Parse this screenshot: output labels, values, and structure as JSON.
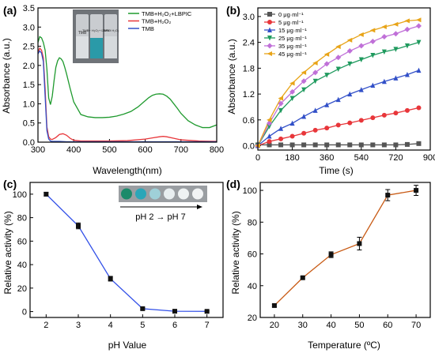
{
  "figure": {
    "panels": [
      {
        "label": "(a)",
        "xlabel": "Wavelength(nm)",
        "ylabel": "Absorbance (a.u.)"
      },
      {
        "label": "(b)",
        "xlabel": "Time (s)",
        "ylabel": "Absorbance (a.u.)"
      },
      {
        "label": "(c)",
        "xlabel": "pH Value",
        "ylabel": "Relative activity (%)",
        "annotation": "pH 2 → pH 7"
      },
      {
        "label": "(d)",
        "xlabel": "Temperature (ºC)",
        "ylabel": "Relative activity (%)"
      }
    ],
    "inset_a": {
      "vial_labels": [
        "TMB",
        "TMB+ H₂O₂+ LBPIC",
        "TMB+ H₂O₂"
      ]
    }
  },
  "chart_data": [
    {
      "panel": "a",
      "type": "line",
      "title": "",
      "xlabel": "Wavelength(nm)",
      "ylabel": "Absorbance (a.u.)",
      "xlim": [
        300,
        800
      ],
      "ylim": [
        0,
        3.5
      ],
      "xticks": [
        300,
        400,
        500,
        600,
        700,
        800
      ],
      "yticks": [
        0.0,
        0.5,
        1.0,
        1.5,
        2.0,
        2.5,
        3.0,
        3.5
      ],
      "x_tick_labels": [
        "300",
        "400",
        "500",
        "600",
        "700",
        "800"
      ],
      "y_tick_labels": [
        "0.0",
        "0.5",
        "1.0",
        "1.5",
        "2.0",
        "2.5",
        "3.0",
        "3.5"
      ],
      "legend_position": "top-right",
      "series": [
        {
          "name": "TMB+H₂O₂+LBPIC",
          "color": "#1f9a2e",
          "x": [
            300,
            305,
            310,
            315,
            320,
            325,
            330,
            335,
            340,
            345,
            350,
            355,
            360,
            365,
            370,
            375,
            380,
            390,
            400,
            420,
            440,
            460,
            480,
            500,
            520,
            540,
            560,
            580,
            600,
            610,
            620,
            630,
            640,
            650,
            660,
            670,
            680,
            690,
            700,
            720,
            740,
            760,
            780,
            800
          ],
          "y": [
            2.6,
            2.75,
            2.72,
            2.6,
            2.4,
            1.9,
            1.15,
            0.98,
            1.2,
            1.6,
            1.95,
            2.12,
            2.2,
            2.17,
            2.1,
            1.95,
            1.78,
            1.4,
            1.05,
            0.72,
            0.66,
            0.64,
            0.64,
            0.65,
            0.68,
            0.73,
            0.8,
            0.92,
            1.08,
            1.16,
            1.22,
            1.25,
            1.26,
            1.25,
            1.2,
            1.12,
            1.0,
            0.88,
            0.75,
            0.56,
            0.45,
            0.38,
            0.38,
            0.45
          ]
        },
        {
          "name": "TMB+H₂O₂",
          "color": "#e8363a",
          "x": [
            300,
            305,
            310,
            315,
            320,
            325,
            330,
            335,
            340,
            350,
            360,
            370,
            380,
            390,
            400,
            420,
            440,
            460,
            500,
            550,
            600,
            620,
            640,
            650,
            660,
            680,
            700,
            750,
            800
          ],
          "y": [
            2.35,
            2.45,
            2.4,
            2.2,
            1.4,
            0.4,
            0.14,
            0.08,
            0.07,
            0.12,
            0.2,
            0.22,
            0.18,
            0.1,
            0.05,
            0.03,
            0.03,
            0.03,
            0.03,
            0.04,
            0.08,
            0.11,
            0.14,
            0.15,
            0.14,
            0.1,
            0.06,
            0.03,
            0.02
          ]
        },
        {
          "name": "TMB",
          "color": "#3250c8",
          "x": [
            300,
            305,
            310,
            315,
            320,
            325,
            330,
            335,
            340,
            350,
            360,
            380,
            400,
            450,
            500,
            600,
            700,
            800
          ],
          "y": [
            2.3,
            2.38,
            2.32,
            2.1,
            1.2,
            0.3,
            0.08,
            0.03,
            0.02,
            0.02,
            0.02,
            0.01,
            0.01,
            0.01,
            0.01,
            0.01,
            0.01,
            0.01
          ]
        }
      ]
    },
    {
      "panel": "b",
      "type": "line",
      "title": "",
      "xlabel": "Time (s)",
      "ylabel": "Absorbance (a.u.)",
      "xlim": [
        0,
        900
      ],
      "ylim": [
        -0.1,
        3.2
      ],
      "xticks": [
        0,
        180,
        360,
        540,
        720,
        900
      ],
      "yticks": [
        0.0,
        0.6,
        1.2,
        1.8,
        2.4,
        3.0
      ],
      "x_tick_labels": [
        "0",
        "180",
        "360",
        "540",
        "720",
        "900"
      ],
      "y_tick_labels": [
        "0.0",
        "0.6",
        "1.2",
        "1.8",
        "2.4",
        "3.0"
      ],
      "legend_position": "top-left",
      "x": [
        0,
        60,
        120,
        180,
        240,
        300,
        360,
        420,
        480,
        540,
        600,
        660,
        720,
        780,
        840
      ],
      "series": [
        {
          "name": "0  μg·ml⁻¹",
          "color": "#555555",
          "marker": "square",
          "values": [
            0.02,
            0.02,
            0.02,
            0.02,
            0.02,
            0.02,
            0.02,
            0.02,
            0.02,
            0.02,
            0.02,
            0.02,
            0.02,
            0.03,
            0.05
          ]
        },
        {
          "name": "5  μg·ml⁻¹",
          "color": "#e8363a",
          "marker": "circle",
          "values": [
            0.0,
            0.1,
            0.16,
            0.22,
            0.29,
            0.36,
            0.41,
            0.48,
            0.53,
            0.59,
            0.65,
            0.71,
            0.76,
            0.82,
            0.88
          ]
        },
        {
          "name": "15  μg·ml⁻¹",
          "color": "#3250c8",
          "marker": "triangle-up",
          "values": [
            0.0,
            0.22,
            0.4,
            0.52,
            0.68,
            0.82,
            0.95,
            1.07,
            1.2,
            1.3,
            1.4,
            1.49,
            1.57,
            1.65,
            1.75
          ]
        },
        {
          "name": "25  μg·ml⁻¹",
          "color": "#1f9a5e",
          "marker": "triangle-down",
          "values": [
            0.0,
            0.45,
            0.82,
            1.1,
            1.3,
            1.5,
            1.64,
            1.78,
            1.9,
            2.0,
            2.1,
            2.18,
            2.24,
            2.32,
            2.4
          ]
        },
        {
          "name": "35  μg·ml⁻¹",
          "color": "#c070d8",
          "marker": "diamond",
          "values": [
            0.0,
            0.52,
            0.98,
            1.25,
            1.5,
            1.7,
            1.9,
            2.05,
            2.2,
            2.32,
            2.42,
            2.53,
            2.6,
            2.7,
            2.78
          ]
        },
        {
          "name": "45  μg·ml⁻¹",
          "color": "#e8a418",
          "marker": "triangle-left",
          "values": [
            0.0,
            0.6,
            1.1,
            1.45,
            1.7,
            1.92,
            2.12,
            2.3,
            2.45,
            2.58,
            2.68,
            2.76,
            2.82,
            2.9,
            2.92
          ]
        }
      ]
    },
    {
      "panel": "c",
      "type": "line",
      "title": "",
      "xlabel": "pH Value",
      "ylabel": "Relative activity (%)",
      "xlim": [
        1.5,
        7.5
      ],
      "ylim": [
        -5,
        110
      ],
      "xticks": [
        2,
        3,
        4,
        5,
        6,
        7
      ],
      "yticks": [
        0,
        20,
        40,
        60,
        80,
        100
      ],
      "x_tick_labels": [
        "2",
        "3",
        "4",
        "5",
        "6",
        "7"
      ],
      "y_tick_labels": [
        "0",
        "20",
        "40",
        "60",
        "80",
        "100"
      ],
      "series": [
        {
          "color": "#3250e8",
          "marker": "square",
          "x": [
            2,
            3,
            4,
            5,
            6,
            7
          ],
          "values": [
            100,
            73,
            28,
            2.5,
            0.3,
            0.2
          ],
          "errors": [
            1.5,
            2.5,
            2.0,
            0.8,
            0.5,
            0.5
          ]
        }
      ]
    },
    {
      "panel": "d",
      "type": "line",
      "title": "",
      "xlabel": "Temperature (ºC)",
      "ylabel": "Relative activity (%)",
      "xlim": [
        15,
        75
      ],
      "ylim": [
        20,
        105
      ],
      "xticks": [
        20,
        30,
        40,
        50,
        60,
        70
      ],
      "yticks": [
        20,
        40,
        60,
        80,
        100
      ],
      "x_tick_labels": [
        "20",
        "30",
        "40",
        "50",
        "60",
        "70"
      ],
      "y_tick_labels": [
        "20",
        "40",
        "60",
        "80",
        "100"
      ],
      "series": [
        {
          "color": "#c85a14",
          "marker": "square",
          "x": [
            20,
            30,
            40,
            50,
            60,
            70
          ],
          "values": [
            27.5,
            45,
            59.5,
            66.5,
            97,
            100
          ],
          "errors": [
            0.8,
            0.7,
            1.8,
            4.0,
            3.5,
            3.2
          ]
        }
      ]
    }
  ]
}
